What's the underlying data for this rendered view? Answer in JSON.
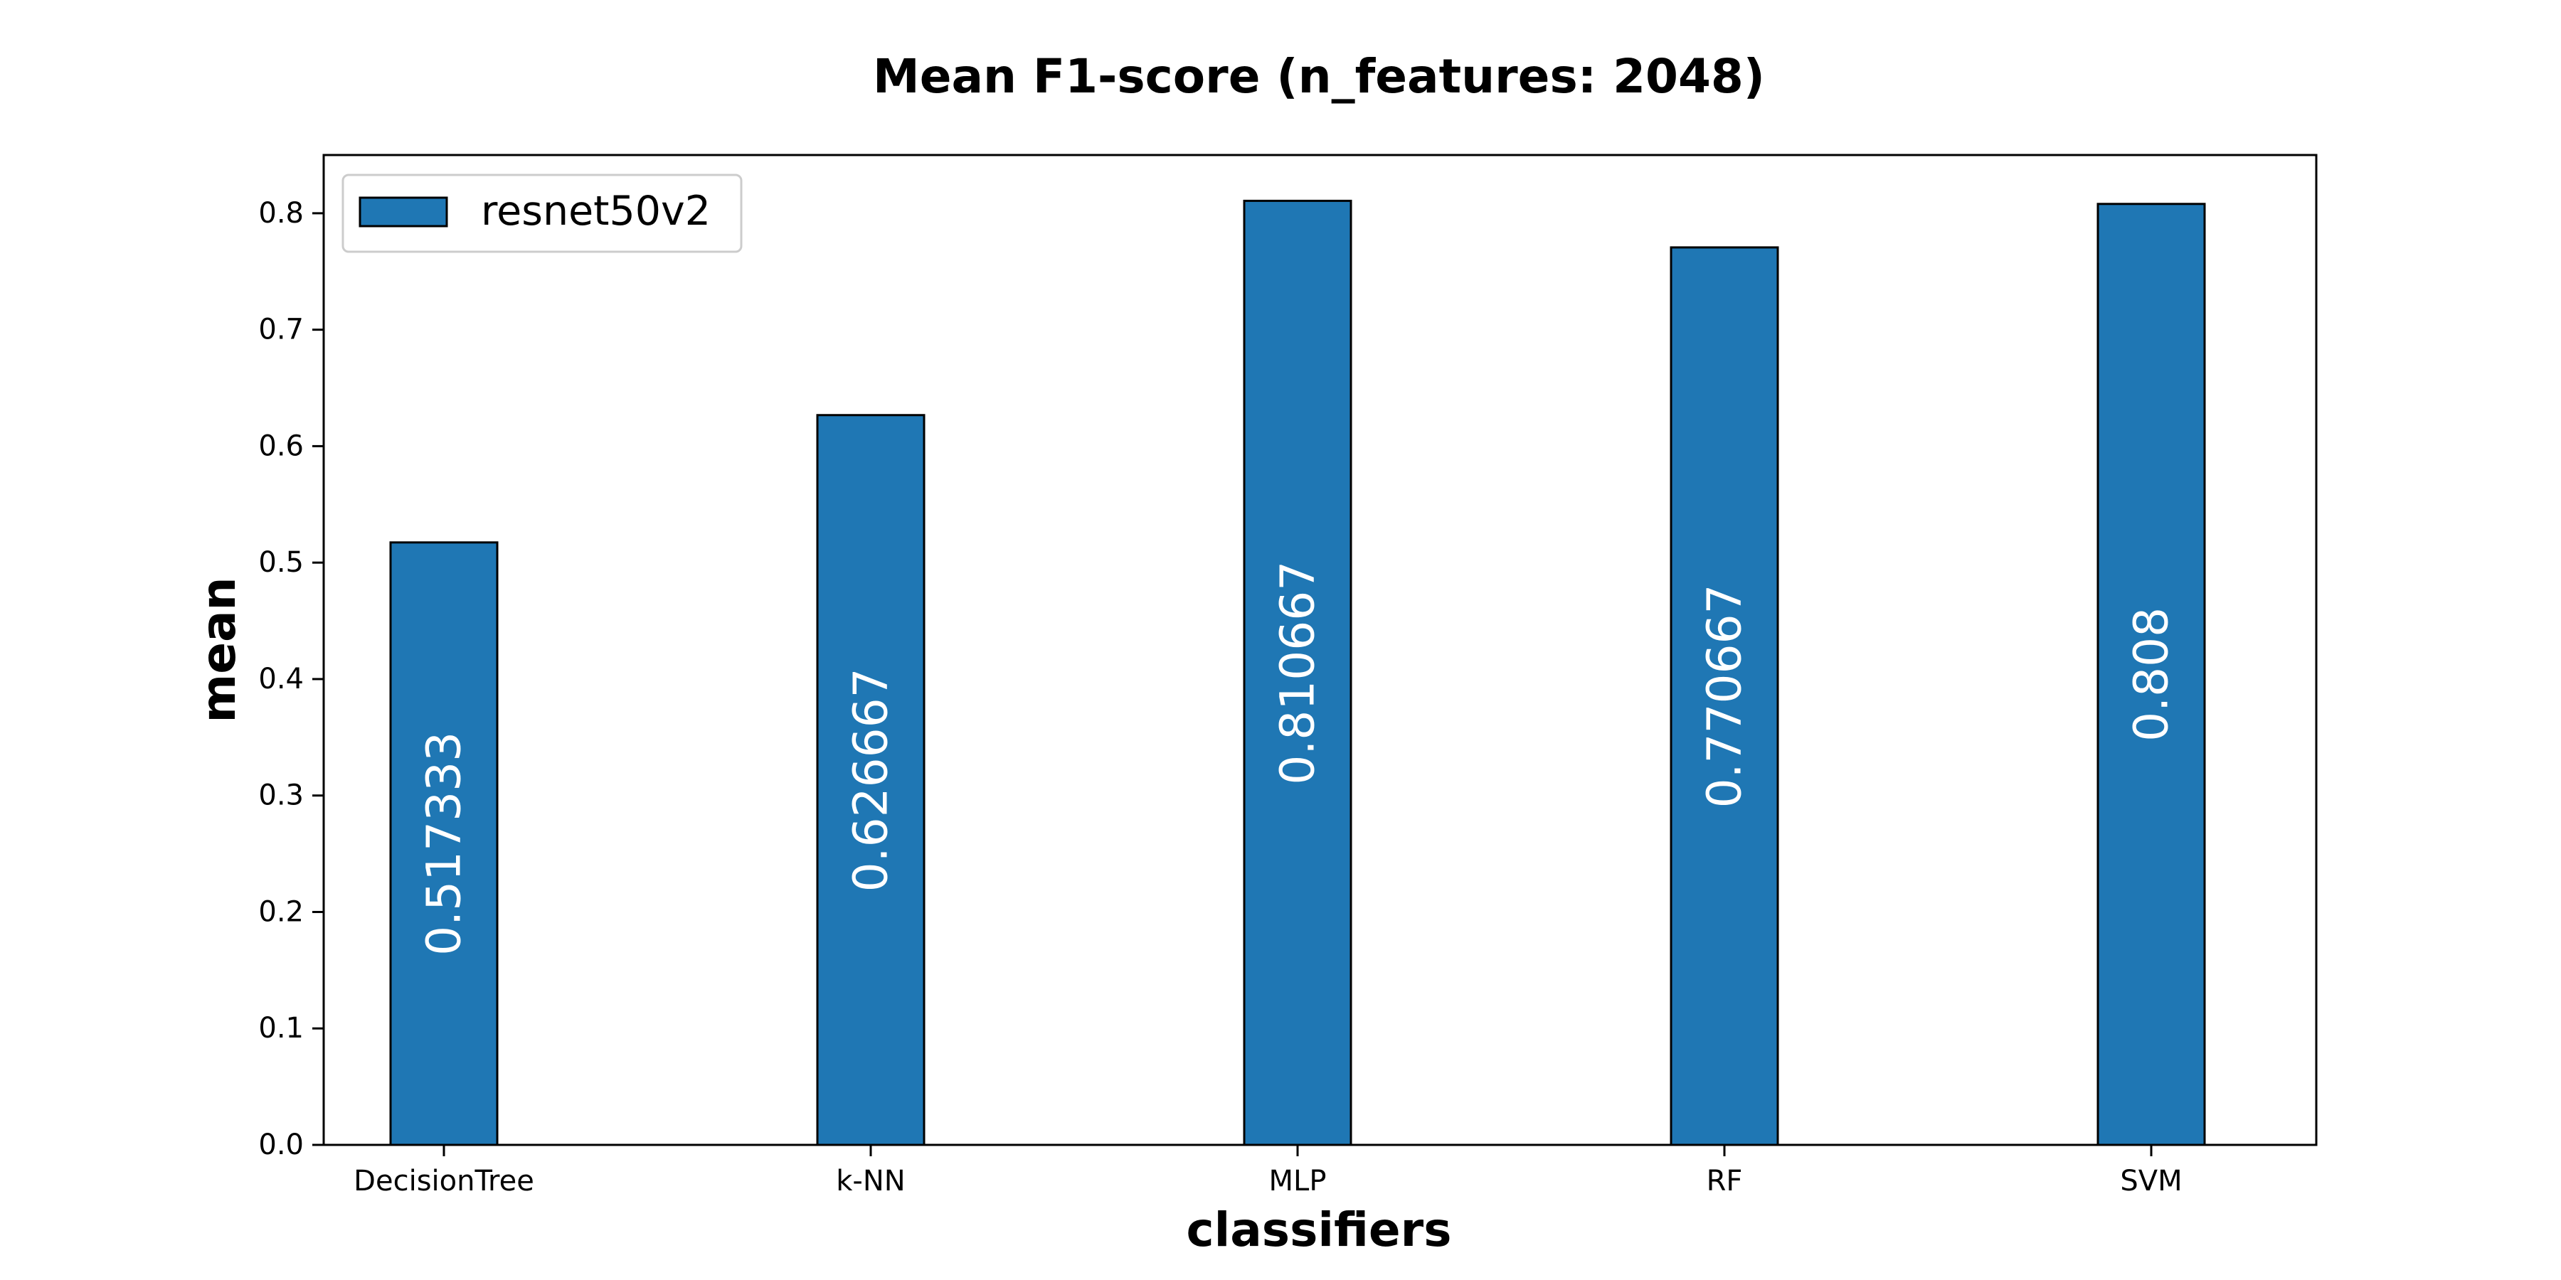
{
  "chart_data": {
    "type": "bar",
    "title": "Mean F1-score (n_features: 2048)",
    "xlabel": "classifiers",
    "ylabel": "mean",
    "categories": [
      "DecisionTree",
      "k-NN",
      "MLP",
      "RF",
      "SVM"
    ],
    "series": [
      {
        "name": "resnet50v2",
        "values": [
          0.517333,
          0.626667,
          0.810667,
          0.770667,
          0.808
        ],
        "labels": [
          "0.517333",
          "0.626667",
          "0.810667",
          "0.770667",
          "0.808"
        ],
        "color": "#1f77b4"
      }
    ],
    "ylim": [
      0,
      0.85
    ],
    "yticks": [
      "0.0",
      "0.1",
      "0.2",
      "0.3",
      "0.4",
      "0.5",
      "0.6",
      "0.7",
      "0.8"
    ],
    "grid": false,
    "legend_position": "upper-left"
  }
}
